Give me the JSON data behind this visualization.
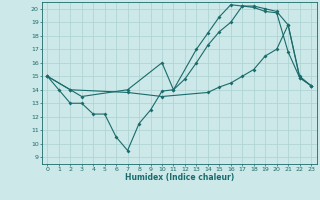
{
  "xlabel": "Humidex (Indice chaleur)",
  "xlim": [
    -0.5,
    23.5
  ],
  "ylim": [
    8.5,
    20.5
  ],
  "yticks": [
    9,
    10,
    11,
    12,
    13,
    14,
    15,
    16,
    17,
    18,
    19,
    20
  ],
  "xticks": [
    0,
    1,
    2,
    3,
    4,
    5,
    6,
    7,
    8,
    9,
    10,
    11,
    12,
    13,
    14,
    15,
    16,
    17,
    18,
    19,
    20,
    21,
    22,
    23
  ],
  "bg_color": "#cce8e8",
  "grid_color": "#b0d4d4",
  "line_color": "#1a6b6b",
  "line1_x": [
    0,
    1,
    2,
    3,
    4,
    5,
    6,
    7,
    8,
    9,
    10,
    11,
    12,
    13,
    14,
    15,
    16,
    17,
    18,
    19,
    20,
    21,
    22,
    23
  ],
  "line1_y": [
    15,
    14,
    13,
    13,
    12.2,
    12.2,
    10.5,
    9.5,
    11.5,
    12.5,
    13.9,
    14.0,
    14.8,
    16.0,
    17.3,
    18.3,
    19.0,
    20.2,
    20.2,
    20.0,
    19.8,
    18.8,
    15.0,
    14.3
  ],
  "line2_x": [
    0,
    2,
    3,
    7,
    10,
    11,
    13,
    14,
    15,
    16,
    17,
    18,
    19,
    20,
    21,
    22,
    23
  ],
  "line2_y": [
    15,
    14,
    13.5,
    14,
    16.0,
    14.0,
    17.0,
    18.2,
    19.4,
    20.3,
    20.2,
    20.1,
    19.8,
    19.7,
    16.8,
    14.9,
    14.3
  ],
  "line3_x": [
    0,
    2,
    7,
    10,
    14,
    15,
    16,
    17,
    18,
    19,
    20,
    21,
    22,
    23
  ],
  "line3_y": [
    15,
    14,
    13.8,
    13.5,
    13.8,
    14.2,
    14.5,
    15.0,
    15.5,
    16.5,
    17.0,
    18.8,
    14.9,
    14.3
  ]
}
